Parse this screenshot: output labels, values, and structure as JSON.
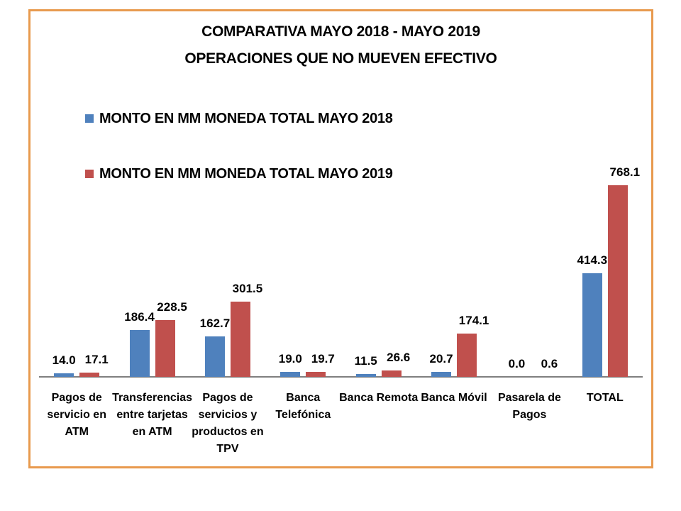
{
  "title": {
    "line1": "COMPARATIVA MAYO 2018 - MAYO 2019",
    "line2": "OPERACIONES QUE NO MUEVEN EFECTIVO"
  },
  "legend": [
    {
      "label": "MONTO EN MM MONEDA TOTAL MAYO 2018",
      "color": "#4F81BD"
    },
    {
      "label": "MONTO EN MM MONEDA TOTAL MAYO 2019",
      "color": "#C0504D"
    }
  ],
  "frame": {
    "border_color": "#E89A4E"
  },
  "chart_data": {
    "type": "bar",
    "title": "COMPARATIVA MAYO 2018 - MAYO 2019 OPERACIONES QUE NO MUEVEN EFECTIVO",
    "categories": [
      "Pagos de servicio en ATM",
      "Transferencias entre tarjetas en ATM",
      "Pagos de servicios y productos en TPV",
      "Banca Telefónica",
      "Banca Remota",
      "Banca Móvil",
      "Pasarela de Pagos",
      "TOTAL"
    ],
    "category_lines": [
      [
        "Pagos de",
        "servicio en",
        "ATM"
      ],
      [
        "Transferencias",
        "entre tarjetas",
        "en ATM"
      ],
      [
        "Pagos de",
        "servicios y",
        "productos en",
        "TPV"
      ],
      [
        "Banca",
        "Telefónica"
      ],
      [
        "Banca Remota"
      ],
      [
        "Banca Móvil"
      ],
      [
        "Pasarela de",
        "Pagos"
      ],
      [
        "TOTAL"
      ]
    ],
    "series": [
      {
        "name": "MONTO EN MM MONEDA TOTAL MAYO 2018",
        "color": "#4F81BD",
        "values": [
          14.0,
          186.4,
          162.7,
          19.0,
          11.5,
          20.7,
          0.0,
          414.3
        ]
      },
      {
        "name": "MONTO EN MM MONEDA TOTAL MAYO 2019",
        "color": "#C0504D",
        "values": [
          17.1,
          228.5,
          301.5,
          19.7,
          26.6,
          174.1,
          0.6,
          768.1
        ]
      }
    ],
    "value_label_decimals": 1,
    "xlabel": "",
    "ylabel": "",
    "ylim": [
      0,
      800
    ],
    "grid": false,
    "y_axis_visible": false,
    "axis_color": "#7F7F7F",
    "legend_position": "top-left"
  }
}
